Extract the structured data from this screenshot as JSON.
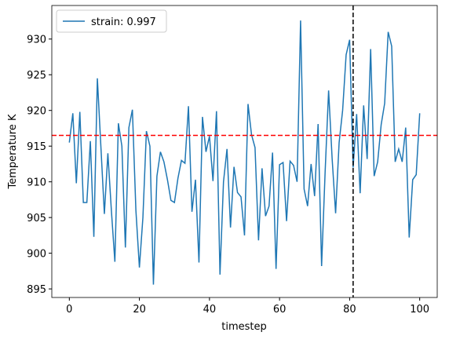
{
  "chart_data": {
    "type": "line",
    "xlabel": "timestep",
    "ylabel": "Temperature K",
    "x": [
      0,
      1,
      2,
      3,
      4,
      5,
      6,
      7,
      8,
      9,
      10,
      11,
      12,
      13,
      14,
      15,
      16,
      17,
      18,
      19,
      20,
      21,
      22,
      23,
      24,
      25,
      26,
      27,
      28,
      29,
      30,
      31,
      32,
      33,
      34,
      35,
      36,
      37,
      38,
      39,
      40,
      41,
      42,
      43,
      44,
      45,
      46,
      47,
      48,
      49,
      50,
      51,
      52,
      53,
      54,
      55,
      56,
      57,
      58,
      59,
      60,
      61,
      62,
      63,
      64,
      65,
      66,
      67,
      68,
      69,
      70,
      71,
      72,
      73,
      74,
      75,
      76,
      77,
      78,
      79,
      80,
      81,
      82,
      83,
      84,
      85,
      86,
      87,
      88,
      89,
      90,
      91,
      92,
      93,
      94,
      95,
      96,
      97,
      98,
      99,
      100
    ],
    "series": [
      {
        "name": "strain: 0.997",
        "color": "#1f77b4",
        "values": [
          915.5,
          919.6,
          909.8,
          919.8,
          907.1,
          907.1,
          915.7,
          902.3,
          924.5,
          915,
          905.5,
          914,
          906,
          898.8,
          918.2,
          915,
          900.8,
          917.6,
          920.1,
          906,
          898,
          905,
          917.1,
          915,
          895.6,
          910.8,
          914.2,
          912.8,
          910.3,
          907.4,
          907.1,
          910.5,
          913,
          912.6,
          920.6,
          905.8,
          910.3,
          898.7,
          919.1,
          914.2,
          916.4,
          910.1,
          919.9,
          897,
          910,
          914.6,
          903.6,
          912.1,
          908.5,
          907.9,
          902.5,
          920.9,
          916.6,
          914.8,
          901.8,
          911.9,
          905.2,
          906.6,
          914.1,
          897.8,
          912.4,
          912.7,
          904.5,
          912.9,
          912.3,
          910,
          932.6,
          909,
          906.6,
          912.5,
          908,
          918.1,
          898.2,
          911.3,
          922.8,
          913.3,
          905.6,
          915.5,
          920,
          927.8,
          929.9,
          912,
          919.5,
          908.4,
          920.7,
          913.2,
          928.6,
          910.8,
          912.8,
          918,
          921,
          931,
          929,
          912.8,
          914.6,
          912.8,
          917.6,
          902.2,
          910.3,
          911,
          919.6
        ]
      }
    ],
    "reference_lines": [
      {
        "axis": "y",
        "value": 916.5,
        "color": "#ff0000"
      },
      {
        "axis": "x",
        "value": 81,
        "color": "#000000"
      }
    ],
    "xlim": [
      -5,
      105
    ],
    "xticks": [
      0,
      20,
      40,
      60,
      80,
      100
    ],
    "ylim": [
      893.8,
      934.7
    ],
    "yticks": [
      895,
      900,
      905,
      910,
      915,
      920,
      925,
      930
    ],
    "legend": "upper left"
  }
}
